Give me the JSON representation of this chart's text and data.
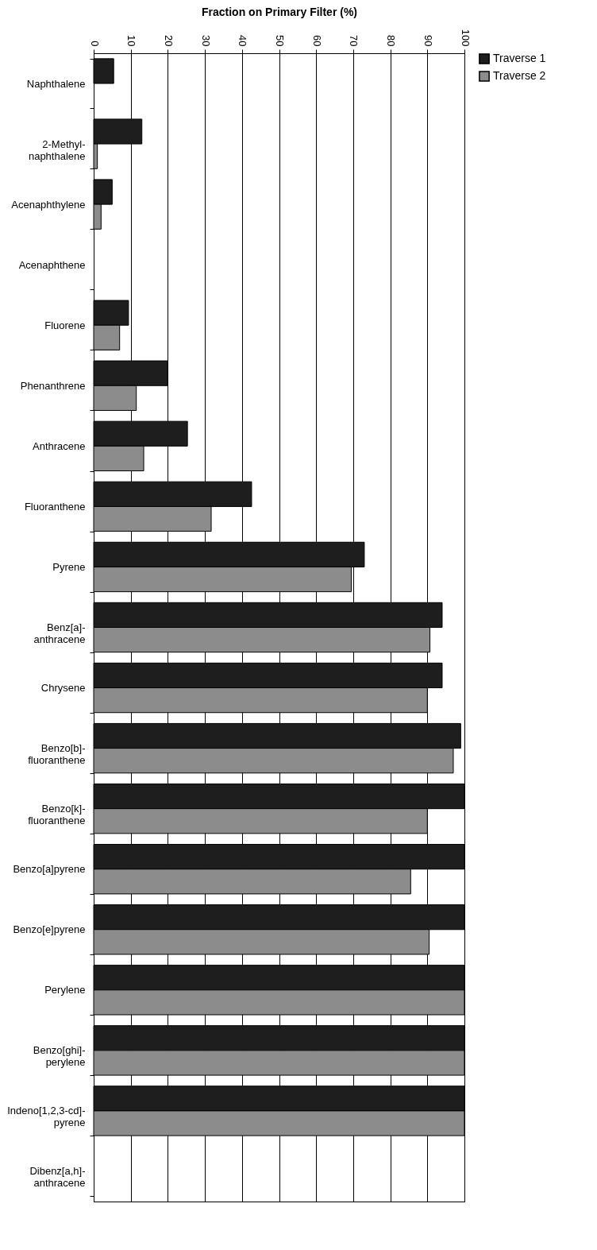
{
  "chart_data": {
    "type": "bar",
    "orientation": "horizontal",
    "xlabel": "Fraction on Primary Filter (%)",
    "categories": [
      "Naphthalene",
      "2-Methyl-\nnaphthalene",
      "Acenaphthylene",
      "Acenaphthene",
      "Fluorene",
      "Phenanthrene",
      "Anthracene",
      "Fluoranthene",
      "Pyrene",
      "Benz[a]-\nanthracene",
      "Chrysene",
      "Benzo[b]-\nfluoranthene",
      "Benzo[k]-\nfluoranthene",
      "Benzo[a]pyrene",
      "Benzo[e]pyrene",
      "Perylene",
      "Benzo[ghi]-\nperylene",
      "Indeno[1,2,3-cd]-\npyrene",
      "Dibenz[a,h]-\nanthracene"
    ],
    "series": [
      {
        "name": "Traverse 1",
        "color": "#1e1e1e",
        "values": [
          5.4,
          13,
          5,
          null,
          9.4,
          20,
          25.3,
          42.6,
          73,
          94,
          94,
          99,
          100,
          100,
          100,
          100,
          100,
          100,
          null
        ]
      },
      {
        "name": "Traverse 2",
        "color": "#8c8c8c",
        "values": [
          null,
          1,
          2,
          null,
          7,
          11.5,
          13.5,
          31.7,
          69.5,
          90.7,
          90,
          97,
          90,
          85.5,
          90.5,
          100,
          100,
          100,
          null
        ]
      }
    ],
    "xlim": [
      0,
      100
    ],
    "xticks": [
      0,
      10,
      20,
      30,
      40,
      50,
      60,
      70,
      80,
      90,
      100
    ],
    "grid": "x",
    "legend": "right"
  }
}
